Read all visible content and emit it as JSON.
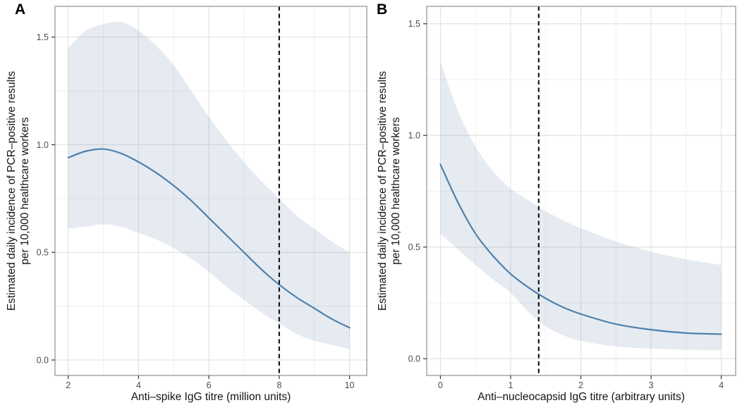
{
  "style": {
    "background": "#ffffff",
    "line_color": "#4e81ac",
    "band_fill": "rgba(78,114,166,0.14)",
    "vline_color": "#0d0d0d",
    "grid_major": "#e3e3e3",
    "grid_minor": "#efefef",
    "panel_border": "#8f8f8f",
    "tick_mark": "#333333",
    "tick_label_color": "#4d4d4d",
    "axis_title_color": "#141414"
  },
  "chart_data": [
    {
      "type": "line",
      "panel_label": "A",
      "title": "",
      "xlabel": "Anti–spike IgG titre (million units)",
      "ylabel_lines": [
        "Estimated daily incidence of PCR–positive results",
        "per 10,000 healthcare workers"
      ],
      "xlim": [
        1.625,
        10.49
      ],
      "ylim": [
        -0.072,
        1.643
      ],
      "x_major_ticks": [
        2,
        4,
        6,
        8,
        10
      ],
      "x_tick_labels": [
        "2",
        "4",
        "6",
        "8",
        "10"
      ],
      "x_minor_ticks": [
        3,
        5,
        7,
        9
      ],
      "y_major_ticks": [
        0.0,
        0.5,
        1.0,
        1.5
      ],
      "y_tick_labels": [
        "0.0",
        "0.5",
        "1.0",
        "1.5"
      ],
      "y_minor_ticks": [
        0.25,
        0.75,
        1.25
      ],
      "vline_x": 8,
      "grid": true,
      "legend": "none",
      "line": {
        "x": [
          2,
          2.5,
          3,
          3.5,
          4,
          4.5,
          5,
          5.5,
          6,
          6.5,
          7,
          7.5,
          8,
          8.5,
          9,
          9.5,
          10
        ],
        "y": [
          0.94,
          0.97,
          0.98,
          0.96,
          0.92,
          0.87,
          0.81,
          0.74,
          0.66,
          0.58,
          0.5,
          0.42,
          0.35,
          0.29,
          0.24,
          0.19,
          0.15
        ]
      },
      "band": {
        "x": [
          2,
          2.5,
          3,
          3.5,
          4,
          4.5,
          5,
          5.5,
          6,
          6.5,
          7,
          7.5,
          8,
          8.5,
          9,
          9.5,
          10
        ],
        "upper": [
          1.45,
          1.53,
          1.56,
          1.57,
          1.53,
          1.46,
          1.37,
          1.25,
          1.13,
          1.02,
          0.92,
          0.83,
          0.75,
          0.67,
          0.61,
          0.55,
          0.5
        ],
        "lower": [
          0.61,
          0.62,
          0.63,
          0.62,
          0.59,
          0.56,
          0.52,
          0.47,
          0.41,
          0.34,
          0.28,
          0.22,
          0.17,
          0.12,
          0.09,
          0.07,
          0.05
        ]
      }
    },
    {
      "type": "line",
      "panel_label": "B",
      "title": "",
      "xlabel": "Anti–nucleocapsid IgG titre (arbitrary units)",
      "ylabel_lines": [
        "Estimated daily incidence of PCR–positive results",
        "per 10,000 healthcare workers"
      ],
      "xlim": [
        -0.195,
        4.205
      ],
      "ylim": [
        -0.075,
        1.578
      ],
      "x_major_ticks": [
        0,
        1,
        2,
        3,
        4
      ],
      "x_tick_labels": [
        "0",
        "1",
        "2",
        "3",
        "4"
      ],
      "x_minor_ticks": [
        0.5,
        1.5,
        2.5,
        3.5
      ],
      "y_major_ticks": [
        0.0,
        0.5,
        1.0,
        1.5
      ],
      "y_tick_labels": [
        "0.0",
        "0.5",
        "1.0",
        "1.5"
      ],
      "y_minor_ticks": [
        0.25,
        0.75,
        1.25
      ],
      "vline_x": 1.4,
      "grid": true,
      "legend": "none",
      "line": {
        "x": [
          0,
          0.25,
          0.5,
          0.75,
          1,
          1.25,
          1.5,
          1.75,
          2,
          2.5,
          3,
          3.5,
          4
        ],
        "y": [
          0.87,
          0.7,
          0.56,
          0.46,
          0.38,
          0.32,
          0.27,
          0.23,
          0.2,
          0.155,
          0.13,
          0.115,
          0.11
        ]
      },
      "band": {
        "x": [
          0,
          0.25,
          0.5,
          0.75,
          1,
          1.25,
          1.5,
          1.75,
          2,
          2.5,
          3,
          3.5,
          4
        ],
        "upper": [
          1.33,
          1.11,
          0.95,
          0.84,
          0.76,
          0.71,
          0.66,
          0.62,
          0.585,
          0.525,
          0.48,
          0.445,
          0.42
        ],
        "lower": [
          0.56,
          0.49,
          0.42,
          0.355,
          0.295,
          0.21,
          0.145,
          0.105,
          0.08,
          0.055,
          0.045,
          0.04,
          0.037
        ]
      }
    }
  ]
}
